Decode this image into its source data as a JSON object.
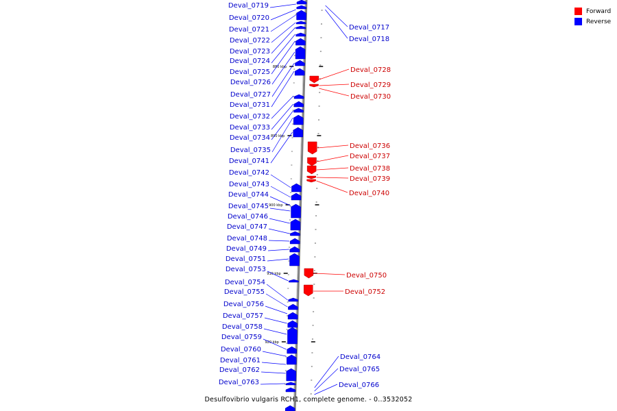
{
  "genome": {
    "caption": "Desulfovibrio vulgaris RCH1, complete genome. - 0..3532052",
    "backbone_color": "#808080"
  },
  "legend": {
    "items": [
      {
        "label": "Forward",
        "color": "#ff0000"
      },
      {
        "label": "Reverse",
        "color": "#0000ff"
      }
    ]
  },
  "scale_marks": [
    "880 kbp",
    "890 kbp",
    "900 kbp",
    "910 kbp",
    "920 kbp"
  ],
  "genes": {
    "reverse": [
      "Deval_0719",
      "Deval_0720",
      "Deval_0721",
      "Deval_0722",
      "Deval_0723",
      "Deval_0724",
      "Deval_0725",
      "Deval_0726",
      "Deval_0727",
      "Deval_0731",
      "Deval_0732",
      "Deval_0733",
      "Deval_0734",
      "Deval_0735",
      "Deval_0741",
      "Deval_0742",
      "Deval_0743",
      "Deval_0744",
      "Deval_0745",
      "Deval_0746",
      "Deval_0747",
      "Deval_0748",
      "Deval_0749",
      "Deval_0751",
      "Deval_0753",
      "Deval_0754",
      "Deval_0755",
      "Deval_0756",
      "Deval_0757",
      "Deval_0758",
      "Deval_0759",
      "Deval_0760",
      "Deval_0761",
      "Deval_0762",
      "Deval_0763",
      "Deval_0717",
      "Deval_0718",
      "Deval_0764",
      "Deval_0765",
      "Deval_0766"
    ],
    "forward": [
      "Deval_0728",
      "Deval_0729",
      "Deval_0730",
      "Deval_0736",
      "Deval_0737",
      "Deval_0738",
      "Deval_0739",
      "Deval_0740",
      "Deval_0750",
      "Deval_0752"
    ]
  }
}
